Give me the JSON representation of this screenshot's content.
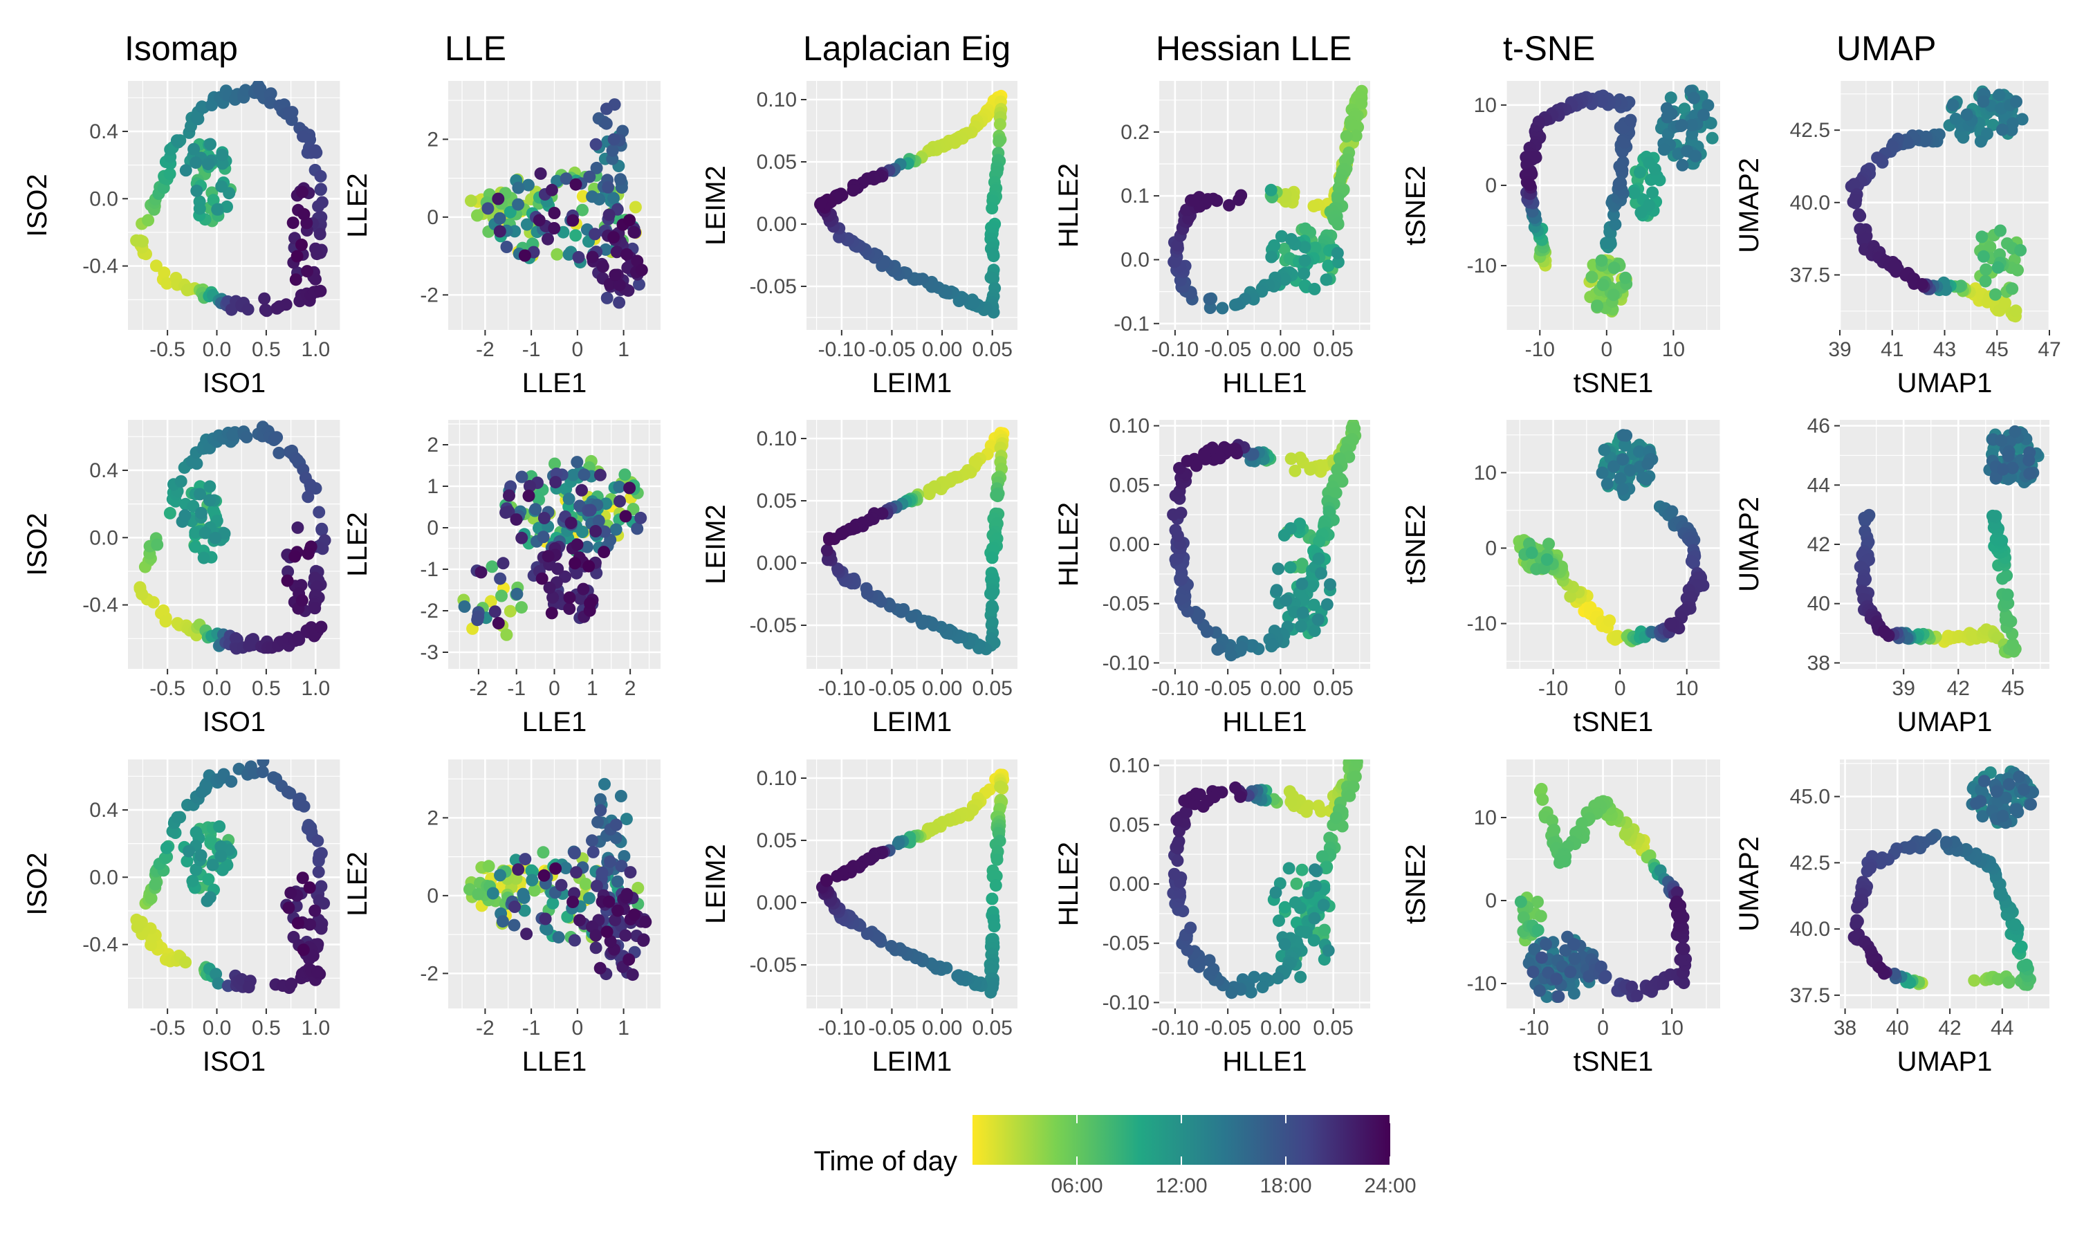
{
  "chart_data": [
    {
      "type": "scatter",
      "method": "Isomap",
      "title": "Isomap",
      "xlabel": "ISO1",
      "ylabel": "ISO2",
      "xlim": [
        -0.9,
        1.25
      ],
      "ylim": [
        -0.78,
        0.7
      ],
      "xticks": [
        -0.5,
        0,
        0.5,
        1
      ],
      "xtick_labels": [
        "-0.5",
        "0.0",
        "0.5",
        "1.0"
      ],
      "yticks": [
        -0.4,
        0,
        0.4
      ],
      "ytick_labels": [
        "-0.4",
        "0.0",
        "0.4"
      ],
      "shape": "ring"
    },
    {
      "type": "scatter",
      "method": "LLE",
      "title": "LLE",
      "xlabel": "LLE1",
      "ylabel": "LLE2",
      "xlim": [
        -2.8,
        1.8
      ],
      "ylim": [
        -2.9,
        3.5
      ],
      "xticks": [
        -2,
        -1,
        0,
        1
      ],
      "xtick_labels": [
        "-2",
        "-1",
        "0",
        "1"
      ],
      "yticks": [
        -2,
        0,
        2
      ],
      "ytick_labels": [
        "-2",
        "0",
        "2"
      ],
      "shape": "cloud"
    },
    {
      "type": "scatter",
      "method": "Laplacian Eig",
      "title": "Laplacian Eig",
      "xlabel": "LEIM1",
      "ylabel": "LEIM2",
      "xlim": [
        -0.135,
        0.075
      ],
      "ylim": [
        -0.085,
        0.115
      ],
      "xticks": [
        -0.1,
        -0.05,
        0,
        0.05
      ],
      "xtick_labels": [
        "-0.10",
        "-0.05",
        "0.00",
        "0.05"
      ],
      "yticks": [
        -0.05,
        0,
        0.05,
        0.1
      ],
      "ytick_labels": [
        "-0.05",
        "0.00",
        "0.05",
        "0.10"
      ],
      "shape": "triangle"
    },
    {
      "type": "scatter",
      "method": "Hessian LLE",
      "title": "Hessian LLE",
      "xlabel": "HLLE1",
      "ylabel": "HLLE2",
      "xlim": [
        -0.115,
        0.085
      ],
      "ylim": [
        -0.11,
        0.28
      ],
      "xticks": [
        -0.1,
        -0.05,
        0,
        0.05
      ],
      "xtick_labels": [
        "-0.10",
        "-0.05",
        "0.00",
        "0.05"
      ],
      "yticks": [
        -0.1,
        0,
        0.1,
        0.2
      ],
      "ytick_labels": [
        "-0.1",
        "0.0",
        "0.1",
        "0.2"
      ],
      "shape": "loop"
    },
    {
      "type": "scatter",
      "method": "t-SNE",
      "title": "t-SNE",
      "xlabel": "tSNE1",
      "ylabel": "tSNE2",
      "xlim": [
        -15,
        17
      ],
      "ylim": [
        -18,
        13
      ],
      "xticks": [
        -10,
        0,
        10
      ],
      "xtick_labels": [
        "-10",
        "0",
        "10"
      ],
      "yticks": [
        -10,
        0,
        10
      ],
      "ytick_labels": [
        "-10",
        "0",
        "10"
      ],
      "shape": "tsne"
    },
    {
      "type": "scatter",
      "method": "UMAP",
      "title": "UMAP",
      "xlabel": "UMAP1",
      "ylabel": "UMAP2",
      "xlim": [
        39,
        47
      ],
      "ylim": [
        35.6,
        44.2
      ],
      "xticks": [
        39,
        41,
        43,
        45,
        47
      ],
      "xtick_labels": [
        "39",
        "41",
        "43",
        "45",
        "47"
      ],
      "yticks": [
        37.5,
        40,
        42.5
      ],
      "ytick_labels": [
        "37.5",
        "40.0",
        "42.5"
      ],
      "shape": "umap"
    },
    {
      "type": "scatter",
      "method": "Isomap",
      "title": "",
      "xlabel": "ISO1",
      "ylabel": "ISO2",
      "xlim": [
        -0.9,
        1.25
      ],
      "ylim": [
        -0.78,
        0.7
      ],
      "xticks": [
        -0.5,
        0,
        0.5,
        1
      ],
      "xtick_labels": [
        "-0.5",
        "0.0",
        "0.5",
        "1.0"
      ],
      "yticks": [
        -0.4,
        0,
        0.4
      ],
      "ytick_labels": [
        "-0.4",
        "0.0",
        "0.4"
      ],
      "shape": "ring"
    },
    {
      "type": "scatter",
      "method": "LLE",
      "title": "",
      "xlabel": "LLE1",
      "ylabel": "LLE2",
      "xlim": [
        -2.8,
        2.8
      ],
      "ylim": [
        -3.4,
        2.6
      ],
      "xticks": [
        -2,
        -1,
        0,
        1,
        2
      ],
      "xtick_labels": [
        "-2",
        "-1",
        "0",
        "1",
        "2"
      ],
      "yticks": [
        -3,
        -2,
        -1,
        0,
        1,
        2
      ],
      "ytick_labels": [
        "-3",
        "-2",
        "-1",
        "0",
        "1",
        "2"
      ],
      "shape": "cloud2"
    },
    {
      "type": "scatter",
      "method": "Laplacian Eig",
      "title": "",
      "xlabel": "LEIM1",
      "ylabel": "LEIM2",
      "xlim": [
        -0.135,
        0.075
      ],
      "ylim": [
        -0.085,
        0.115
      ],
      "xticks": [
        -0.1,
        -0.05,
        0,
        0.05
      ],
      "xtick_labels": [
        "-0.10",
        "-0.05",
        "0.00",
        "0.05"
      ],
      "yticks": [
        -0.05,
        0,
        0.05,
        0.1
      ],
      "ytick_labels": [
        "-0.05",
        "0.00",
        "0.05",
        "0.10"
      ],
      "shape": "triangle"
    },
    {
      "type": "scatter",
      "method": "Hessian LLE",
      "title": "",
      "xlabel": "HLLE1",
      "ylabel": "HLLE2",
      "xlim": [
        -0.115,
        0.085
      ],
      "ylim": [
        -0.105,
        0.105
      ],
      "xticks": [
        -0.1,
        -0.05,
        0,
        0.05
      ],
      "xtick_labels": [
        "-0.10",
        "-0.05",
        "0.00",
        "0.05"
      ],
      "yticks": [
        -0.1,
        -0.05,
        0,
        0.05,
        0.1
      ],
      "ytick_labels": [
        "-0.10",
        "-0.05",
        "0.00",
        "0.05",
        "0.10"
      ],
      "shape": "loop2"
    },
    {
      "type": "scatter",
      "method": "t-SNE",
      "title": "",
      "xlabel": "tSNE1",
      "ylabel": "tSNE2",
      "xlim": [
        -17,
        15
      ],
      "ylim": [
        -16,
        17
      ],
      "xticks": [
        -10,
        0,
        10
      ],
      "xtick_labels": [
        "-10",
        "0",
        "10"
      ],
      "yticks": [
        -10,
        0,
        10
      ],
      "ytick_labels": [
        "-10",
        "0",
        "10"
      ],
      "shape": "tsne2"
    },
    {
      "type": "scatter",
      "method": "UMAP",
      "title": "",
      "xlabel": "UMAP1",
      "ylabel": "UMAP2",
      "xlim": [
        35.5,
        47
      ],
      "ylim": [
        37.8,
        46.2
      ],
      "xticks": [
        39,
        42,
        45
      ],
      "xtick_labels": [
        "39",
        "42",
        "45"
      ],
      "yticks": [
        38,
        40,
        42,
        44,
        46
      ],
      "ytick_labels": [
        "38",
        "40",
        "42",
        "44",
        "46"
      ],
      "shape": "umap2"
    },
    {
      "type": "scatter",
      "method": "Isomap",
      "title": "",
      "xlabel": "ISO1",
      "ylabel": "ISO2",
      "xlim": [
        -0.9,
        1.25
      ],
      "ylim": [
        -0.78,
        0.7
      ],
      "xticks": [
        -0.5,
        0,
        0.5,
        1
      ],
      "xtick_labels": [
        "-0.5",
        "0.0",
        "0.5",
        "1.0"
      ],
      "yticks": [
        -0.4,
        0,
        0.4
      ],
      "ytick_labels": [
        "-0.4",
        "0.0",
        "0.4"
      ],
      "shape": "ring"
    },
    {
      "type": "scatter",
      "method": "LLE",
      "title": "",
      "xlabel": "LLE1",
      "ylabel": "LLE2",
      "xlim": [
        -2.8,
        1.8
      ],
      "ylim": [
        -2.9,
        3.5
      ],
      "xticks": [
        -2,
        -1,
        0,
        1
      ],
      "xtick_labels": [
        "-2",
        "-1",
        "0",
        "1"
      ],
      "yticks": [
        -2,
        0,
        2
      ],
      "ytick_labels": [
        "-2",
        "0",
        "2"
      ],
      "shape": "cloud"
    },
    {
      "type": "scatter",
      "method": "Laplacian Eig",
      "title": "",
      "xlabel": "LEIM1",
      "ylabel": "LEIM2",
      "xlim": [
        -0.135,
        0.075
      ],
      "ylim": [
        -0.085,
        0.115
      ],
      "xticks": [
        -0.1,
        -0.05,
        0,
        0.05
      ],
      "xtick_labels": [
        "-0.10",
        "-0.05",
        "0.00",
        "0.05"
      ],
      "yticks": [
        -0.05,
        0,
        0.05,
        0.1
      ],
      "ytick_labels": [
        "-0.05",
        "0.00",
        "0.05",
        "0.10"
      ],
      "shape": "triangle"
    },
    {
      "type": "scatter",
      "method": "Hessian LLE",
      "title": "",
      "xlabel": "HLLE1",
      "ylabel": "HLLE2",
      "xlim": [
        -0.115,
        0.085
      ],
      "ylim": [
        -0.105,
        0.105
      ],
      "xticks": [
        -0.1,
        -0.05,
        0,
        0.05
      ],
      "xtick_labels": [
        "-0.10",
        "-0.05",
        "0.00",
        "0.05"
      ],
      "yticks": [
        -0.1,
        -0.05,
        0,
        0.05,
        0.1
      ],
      "ytick_labels": [
        "-0.10",
        "-0.05",
        "0.00",
        "0.05",
        "0.10"
      ],
      "shape": "loop2"
    },
    {
      "type": "scatter",
      "method": "t-SNE",
      "title": "",
      "xlabel": "tSNE1",
      "ylabel": "tSNE2",
      "xlim": [
        -14,
        17
      ],
      "ylim": [
        -13,
        17
      ],
      "xticks": [
        -10,
        0,
        10
      ],
      "xtick_labels": [
        "-10",
        "0",
        "10"
      ],
      "yticks": [
        -10,
        0,
        10
      ],
      "ytick_labels": [
        "-10",
        "0",
        "10"
      ],
      "shape": "tsne3"
    },
    {
      "type": "scatter",
      "method": "UMAP",
      "title": "",
      "xlabel": "UMAP1",
      "ylabel": "UMAP2",
      "xlim": [
        37.8,
        45.8
      ],
      "ylim": [
        37,
        46.4
      ],
      "xticks": [
        38,
        40,
        42,
        44
      ],
      "xtick_labels": [
        "38",
        "40",
        "42",
        "44"
      ],
      "yticks": [
        37.5,
        40,
        42.5,
        45
      ],
      "ytick_labels": [
        "37.5",
        "40.0",
        "42.5",
        "45.0"
      ],
      "shape": "umap3"
    }
  ],
  "legend": {
    "title": "Time of day",
    "ticks": [
      "06:00",
      "12:00",
      "18:00",
      "24:00"
    ],
    "tick_values": [
      6,
      12,
      18,
      24
    ],
    "range": [
      0,
      24
    ],
    "colors": [
      "#fde725",
      "#7ad151",
      "#22a884",
      "#2a788e",
      "#414487",
      "#440154"
    ]
  },
  "style": {
    "panel_background": "#ebebeb",
    "grid_color": "#ffffff"
  }
}
